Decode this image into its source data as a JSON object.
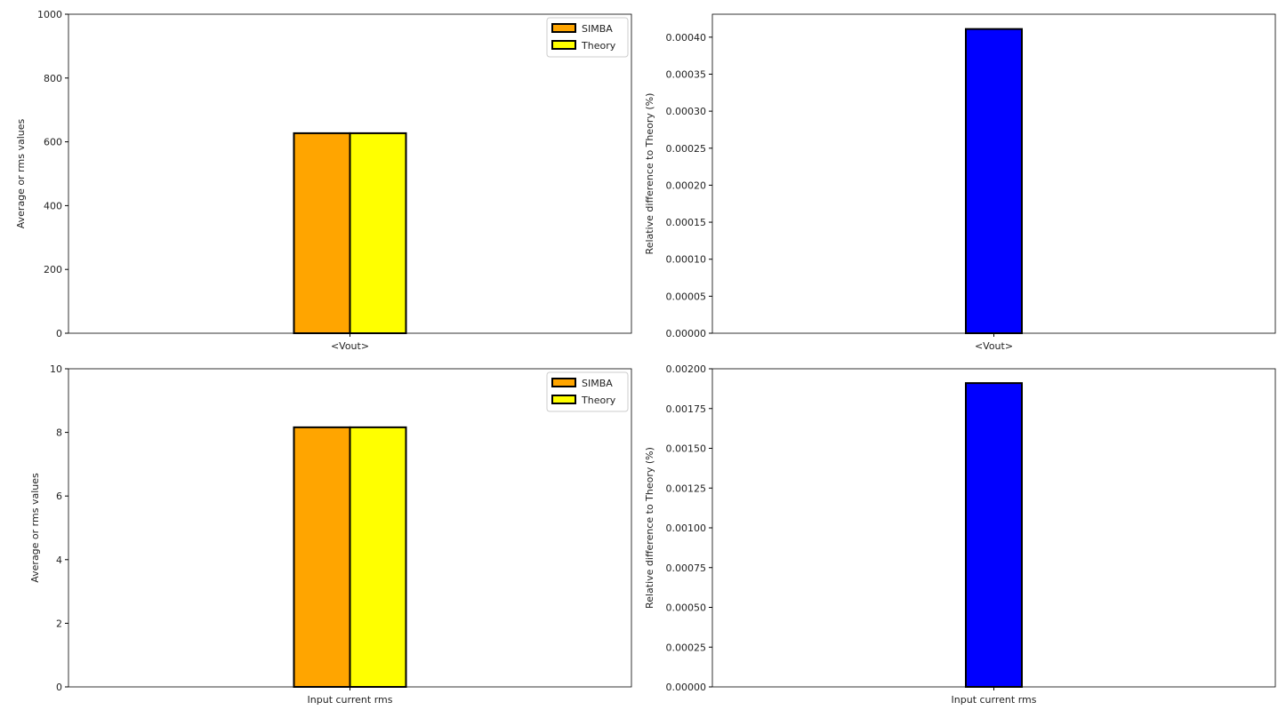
{
  "chart_data": [
    {
      "type": "bar",
      "categories": [
        "<Vout>"
      ],
      "series": [
        {
          "name": "SIMBA",
          "values": [
            627
          ],
          "color": "#ffa500"
        },
        {
          "name": "Theory",
          "values": [
            627
          ],
          "color": "#ffff00"
        }
      ],
      "xlabel": "",
      "ylabel": "Average or rms values",
      "ylim": [
        0,
        1000
      ],
      "yticks": [
        "0",
        "200",
        "400",
        "600",
        "800",
        "1000"
      ],
      "legend": "top-right",
      "grid": false
    },
    {
      "type": "bar",
      "categories": [
        "<Vout>"
      ],
      "series": [
        {
          "values": [
            0.000411
          ],
          "color": "#0000ff"
        }
      ],
      "xlabel": "",
      "ylabel": "Relative difference to Theory (%)",
      "ylim": [
        0,
        0.000431
      ],
      "yticks": [
        "0.00000",
        "0.00005",
        "0.00010",
        "0.00015",
        "0.00020",
        "0.00025",
        "0.00030",
        "0.00035",
        "0.00040"
      ],
      "grid": false
    },
    {
      "type": "bar",
      "categories": [
        "Input current rms"
      ],
      "series": [
        {
          "name": "SIMBA",
          "values": [
            8.16
          ],
          "color": "#ffa500"
        },
        {
          "name": "Theory",
          "values": [
            8.16
          ],
          "color": "#ffff00"
        }
      ],
      "xlabel": "",
      "ylabel": "Average or rms values",
      "ylim": [
        0,
        10
      ],
      "yticks": [
        "0",
        "2",
        "4",
        "6",
        "8",
        "10"
      ],
      "legend": "top-right",
      "grid": false
    },
    {
      "type": "bar",
      "categories": [
        "Input current rms"
      ],
      "series": [
        {
          "values": [
            0.00191
          ],
          "color": "#0000ff"
        }
      ],
      "xlabel": "",
      "ylabel": "Relative difference to Theory (%)",
      "ylim": [
        0,
        0.002
      ],
      "yticks": [
        "0.00000",
        "0.00025",
        "0.00050",
        "0.00075",
        "0.00100",
        "0.00125",
        "0.00150",
        "0.00175",
        "0.00200"
      ],
      "grid": false
    }
  ]
}
